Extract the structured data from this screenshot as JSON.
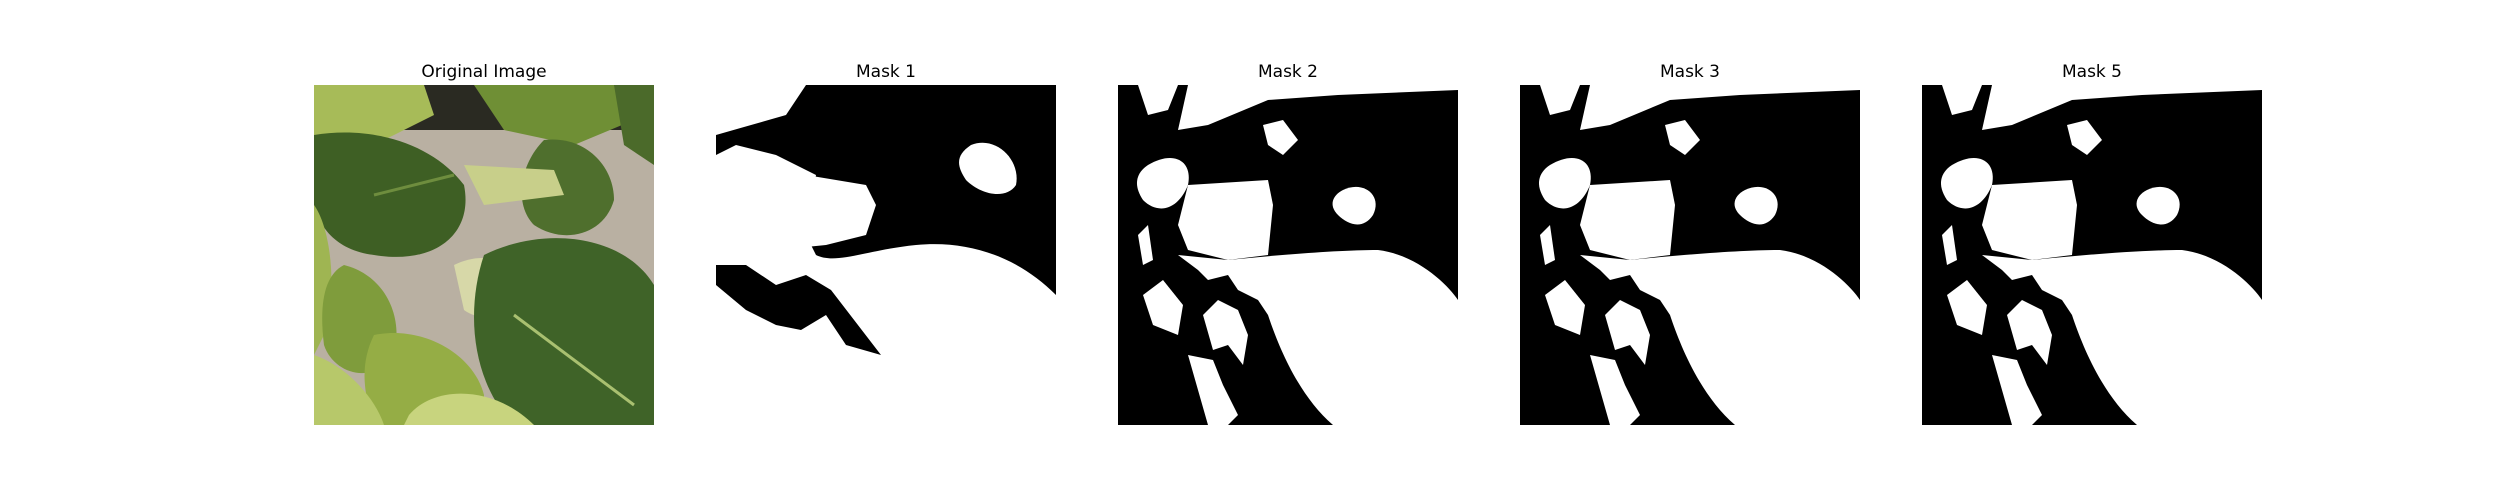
{
  "figure": {
    "panels": [
      {
        "id": "original",
        "title": "Original Image",
        "kind": "photo-icon"
      },
      {
        "id": "mask1",
        "title": "Mask 1",
        "kind": "mask-icon"
      },
      {
        "id": "mask2",
        "title": "Mask 2",
        "kind": "mask-icon"
      },
      {
        "id": "mask3",
        "title": "Mask 3",
        "kind": "mask-icon"
      },
      {
        "id": "mask5",
        "title": "Mask 5",
        "kind": "mask-icon"
      }
    ]
  },
  "colors": {
    "mask_foreground": "#ffffff",
    "mask_background": "#000000",
    "leaf_dark": "#3e5f24",
    "leaf_mid": "#6f8f35",
    "leaf_light": "#b7c86a",
    "soil": "#b9b0a2"
  }
}
